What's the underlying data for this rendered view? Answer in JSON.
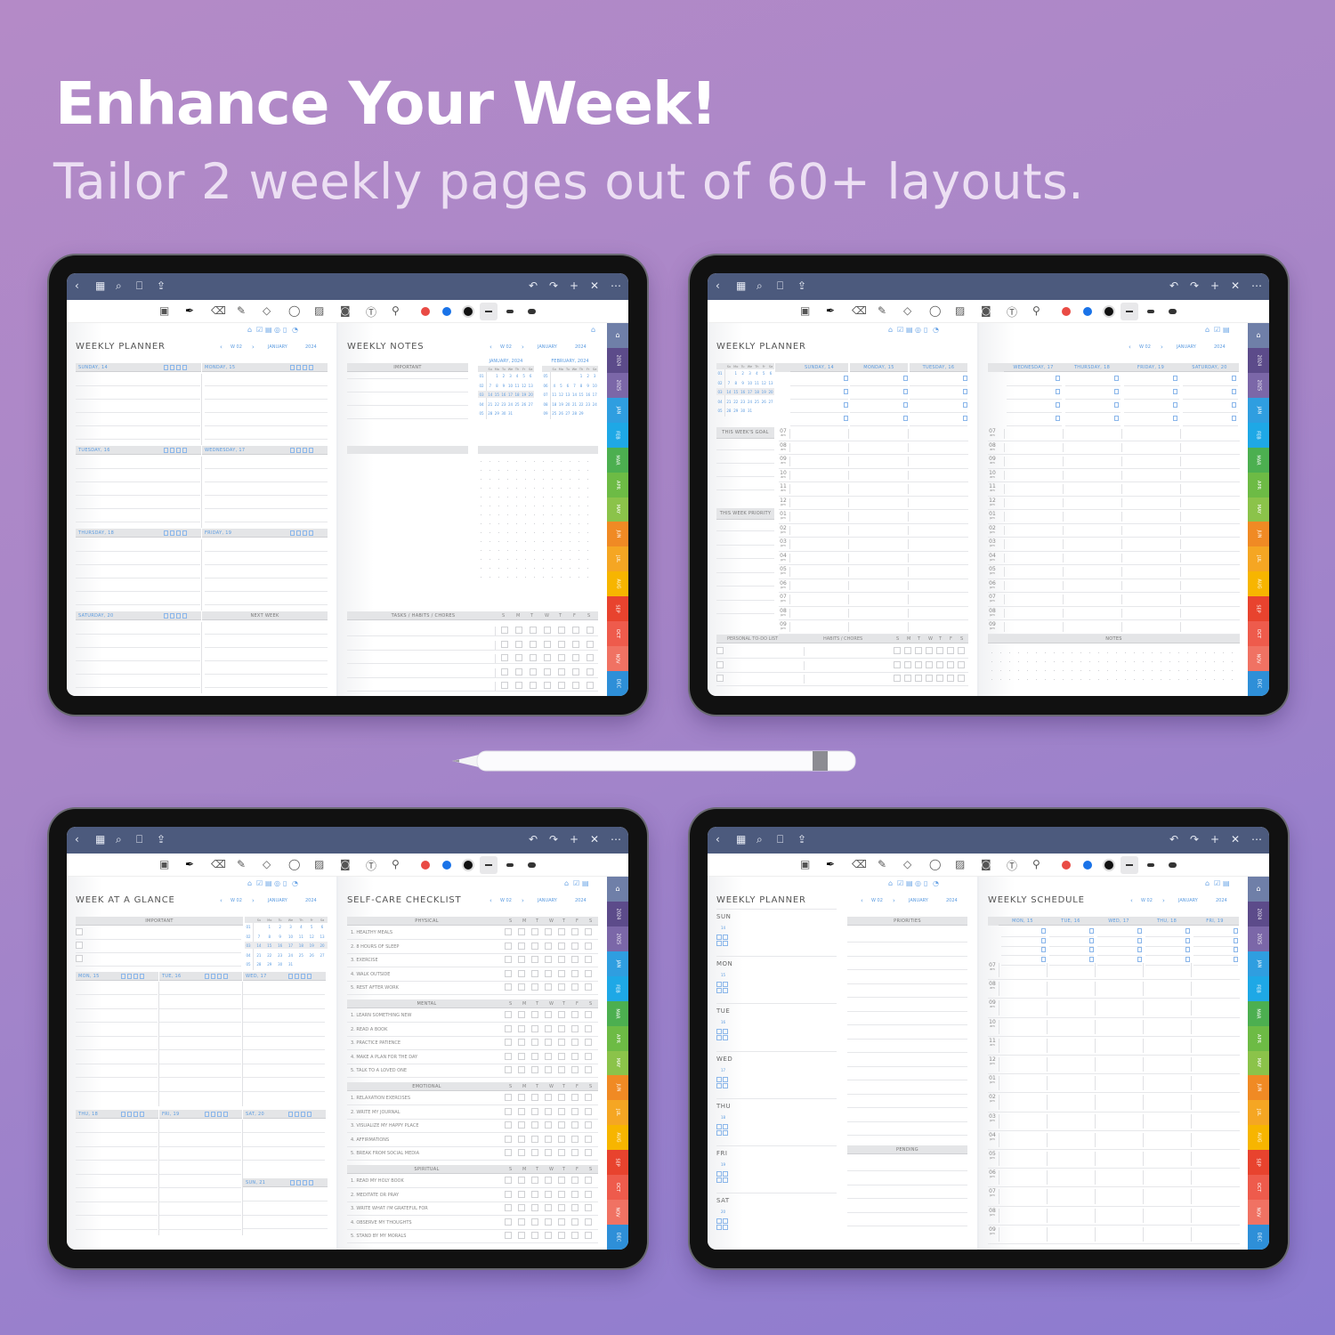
{
  "headline": "Enhance Your Week!",
  "subheadline": "Tailor 2 weekly pages out of 60+ layouts.",
  "nav": {
    "week": "W 02",
    "month": "JANUARY",
    "year": "2024"
  },
  "topbar_icons": {
    "left": [
      "back-chevron",
      "grid",
      "search",
      "bookmark",
      "share"
    ],
    "right": [
      "undo",
      "redo",
      "plus",
      "close",
      "more"
    ]
  },
  "toolbar": {
    "tools": [
      "page-layout",
      "pen",
      "eraser",
      "highlighter",
      "shapes",
      "lasso",
      "image",
      "camera",
      "text-box",
      "laser-pointer"
    ],
    "colors": [
      "#e94b45",
      "#1a73e8",
      "#111111"
    ],
    "selected_color": "#111111"
  },
  "page_icons": [
    "home",
    "checklist",
    "inbox",
    "target",
    "document",
    "pie"
  ],
  "side_tabs": {
    "home_color": "#6f7fa8",
    "labels": [
      "2024",
      "2025",
      "JAN",
      "FEB",
      "MAR",
      "APR",
      "MAY",
      "JUN",
      "JUL",
      "AUG",
      "SEP",
      "OCT",
      "NOV",
      "DEC"
    ],
    "colors": [
      "#5c4b8a",
      "#7b67a8",
      "#2f9ee0",
      "#1ea8e6",
      "#4caf50",
      "#6dbb45",
      "#8bc34a",
      "#f08a24",
      "#f5a623",
      "#f7b500",
      "#e8432e",
      "#ee5b4c",
      "#f07263",
      "#2e8fd8"
    ]
  },
  "weekday_abbr": [
    "Su",
    "Mo",
    "Tu",
    "We",
    "Th",
    "Fr",
    "Sa"
  ],
  "habit_days": [
    "S",
    "M",
    "T",
    "W",
    "T",
    "F",
    "S"
  ],
  "calendars": [
    {
      "title": "JANUARY, 2024",
      "weeks": [
        "01",
        "02",
        "03",
        "04",
        "05"
      ],
      "rows": [
        [
          "",
          "1",
          "2",
          "3",
          "4",
          "5",
          "6"
        ],
        [
          "7",
          "8",
          "9",
          "10",
          "11",
          "12",
          "13"
        ],
        [
          "14",
          "15",
          "16",
          "17",
          "18",
          "19",
          "20"
        ],
        [
          "21",
          "22",
          "23",
          "24",
          "25",
          "26",
          "27"
        ],
        [
          "28",
          "29",
          "30",
          "31",
          "",
          "",
          ""
        ]
      ]
    },
    {
      "title": "FEBRUARY, 2024",
      "weeks": [
        "05",
        "06",
        "07",
        "08",
        "09"
      ],
      "rows": [
        [
          "",
          "",
          "",
          "",
          "1",
          "2",
          "3"
        ],
        [
          "4",
          "5",
          "6",
          "7",
          "8",
          "9",
          "10"
        ],
        [
          "11",
          "12",
          "13",
          "14",
          "15",
          "16",
          "17"
        ],
        [
          "18",
          "19",
          "20",
          "21",
          "22",
          "23",
          "24"
        ],
        [
          "25",
          "26",
          "27",
          "28",
          "29",
          "",
          ""
        ]
      ]
    }
  ],
  "hours": [
    {
      "h": "07",
      "p": "am"
    },
    {
      "h": "08",
      "p": "am"
    },
    {
      "h": "09",
      "p": "am"
    },
    {
      "h": "10",
      "p": "am"
    },
    {
      "h": "11",
      "p": "am"
    },
    {
      "h": "12",
      "p": "pm"
    },
    {
      "h": "01",
      "p": "pm"
    },
    {
      "h": "02",
      "p": "pm"
    },
    {
      "h": "03",
      "p": "pm"
    },
    {
      "h": "04",
      "p": "pm"
    },
    {
      "h": "05",
      "p": "pm"
    },
    {
      "h": "06",
      "p": "pm"
    },
    {
      "h": "07",
      "p": "pm"
    },
    {
      "h": "08",
      "p": "pm"
    },
    {
      "h": "09",
      "p": "pm"
    }
  ],
  "tablets": [
    {
      "left": {
        "title": "WEEKLY PLANNER",
        "days": [
          "SUNDAY, 14",
          "MONDAY, 15",
          "TUESDAY, 16",
          "WEDNESDAY, 17",
          "THURSDAY, 18",
          "FRIDAY, 19",
          "SATURDAY, 20",
          "NEXT WEEK"
        ]
      },
      "right": {
        "title": "WEEKLY NOTES",
        "important": "IMPORTANT",
        "tasks": "TASKS / HABITS / CHORES"
      }
    },
    {
      "left": {
        "title": "WEEKLY PLANNER",
        "days": [
          "SUNDAY, 14",
          "MONDAY, 15",
          "TUESDAY, 16"
        ],
        "goal": "THIS WEEK'S GOAL",
        "priority": "THIS WEEK PRIORITY",
        "todo": "PERSONAL TO-DO LIST",
        "habits": "HABITS / CHORES"
      },
      "right": {
        "days": [
          "WEDNESDAY, 17",
          "THURSDAY, 18",
          "FRIDAY, 19",
          "SATURDAY, 20"
        ],
        "notes": "NOTES"
      }
    },
    {
      "left": {
        "title": "WEEK AT A GLANCE",
        "important": "IMPORTANT",
        "days": [
          "MON, 15",
          "TUE, 16",
          "WED, 17",
          "THU, 18",
          "FRI, 19",
          "SAT, 20",
          "SUN, 21"
        ]
      },
      "right": {
        "title": "SELF-CARE CHECKLIST",
        "sections": [
          {
            "name": "PHYSICAL",
            "items": [
              "1. HEALTHY MEALS",
              "2. 8 HOURS OF SLEEP",
              "3. EXERCISE",
              "4. WALK OUTSIDE",
              "5. REST AFTER WORK"
            ]
          },
          {
            "name": "MENTAL",
            "items": [
              "1. LEARN SOMETHING NEW",
              "2. READ A BOOK",
              "3. PRACTICE PATIENCE",
              "4. MAKE A PLAN FOR THE DAY",
              "5. TALK TO A LOVED ONE"
            ]
          },
          {
            "name": "EMOTIONAL",
            "items": [
              "1. RELAXATION EXERCISES",
              "2. WRITE MY JOURNAL",
              "3. VISUALIZE MY HAPPY PLACE",
              "4. AFFIRMATIONS",
              "5. BREAK FROM SOCIAL MEDIA"
            ]
          },
          {
            "name": "SPIRITUAL",
            "items": [
              "1. READ MY HOLY BOOK",
              "2. MEDITATE OR PRAY",
              "3. WRITE WHAT I'M GRATEFUL FOR",
              "4. OBSERVE MY THOUGHTS",
              "5. STAND BY MY MORALS"
            ]
          }
        ]
      }
    },
    {
      "left": {
        "title": "WEEKLY PLANNER",
        "days": [
          {
            "d": "SUN",
            "n": "14"
          },
          {
            "d": "MON",
            "n": "15"
          },
          {
            "d": "TUE",
            "n": "16"
          },
          {
            "d": "WED",
            "n": "17"
          },
          {
            "d": "THU",
            "n": "18"
          },
          {
            "d": "FRI",
            "n": "19"
          },
          {
            "d": "SAT",
            "n": "20"
          }
        ],
        "priorities": "PRIORITIES",
        "pending": "PENDING"
      },
      "right": {
        "title": "WEEKLY SCHEDULE",
        "days": [
          "MON, 15",
          "TUE, 16",
          "WED, 17",
          "THU, 18",
          "FRI, 19"
        ]
      }
    }
  ]
}
